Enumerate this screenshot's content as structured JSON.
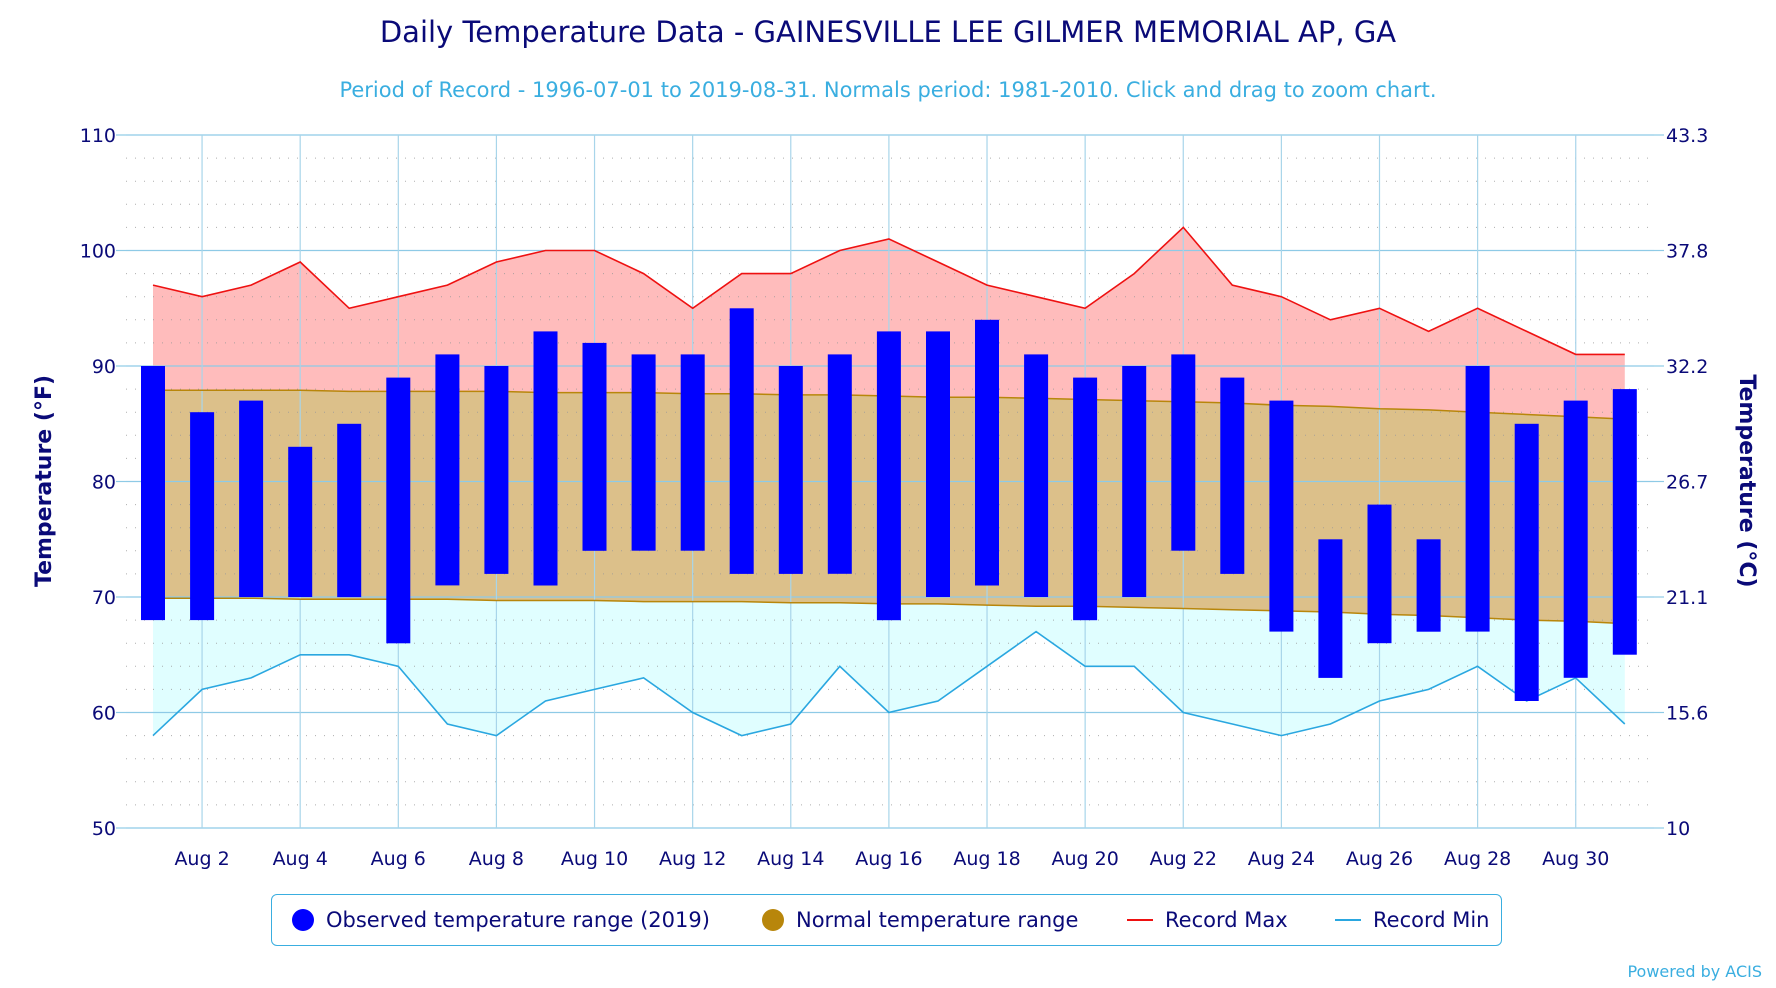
{
  "chart_data": {
    "type": "bar",
    "title": "Daily Temperature Data - GAINESVILLE LEE GILMER MEMORIAL AP, GA",
    "subtitle": "Period of Record - 1996-07-01 to 2019-08-31. Normals period: 1981-2010. Click and drag to zoom chart.",
    "ylabel_left": "Temperature (°F)",
    "ylabel_right": "Temperature (°C)",
    "ylim": [
      50,
      110
    ],
    "y_ticks": [
      50,
      60,
      70,
      80,
      90,
      100,
      110
    ],
    "y_ticks_right": [
      "10",
      "15.6",
      "21.1",
      "26.7",
      "32.2",
      "37.8",
      "43.3"
    ],
    "days": [
      1,
      2,
      3,
      4,
      5,
      6,
      7,
      8,
      9,
      10,
      11,
      12,
      13,
      14,
      15,
      16,
      17,
      18,
      19,
      20,
      21,
      22,
      23,
      24,
      25,
      26,
      27,
      28,
      29,
      30,
      31
    ],
    "x_tick_labels": [
      "Aug 2",
      "Aug 4",
      "Aug 6",
      "Aug 8",
      "Aug 10",
      "Aug 12",
      "Aug 14",
      "Aug 16",
      "Aug 18",
      "Aug 20",
      "Aug 22",
      "Aug 24",
      "Aug 26",
      "Aug 28",
      "Aug 30"
    ],
    "x_tick_days": [
      2,
      4,
      6,
      8,
      10,
      12,
      14,
      16,
      18,
      20,
      22,
      24,
      26,
      28,
      30
    ],
    "series": [
      {
        "name": "Observed temperature range (2019)",
        "color": "#0000ff",
        "low": [
          68,
          68,
          70,
          70,
          70,
          66,
          71,
          72,
          71,
          74,
          74,
          74,
          72,
          72,
          72,
          68,
          70,
          71,
          70,
          68,
          70,
          74,
          72,
          67,
          63,
          66,
          67,
          67,
          61,
          63,
          65
        ],
        "high": [
          90,
          86,
          87,
          83,
          85,
          89,
          91,
          90,
          93,
          92,
          91,
          91,
          95,
          90,
          91,
          93,
          93,
          94,
          91,
          89,
          90,
          91,
          89,
          87,
          75,
          78,
          75,
          90,
          85,
          87,
          88
        ]
      },
      {
        "name": "Normal temperature range",
        "color": "#b8860b",
        "low": [
          69.9,
          69.9,
          69.9,
          69.8,
          69.8,
          69.8,
          69.8,
          69.7,
          69.7,
          69.7,
          69.6,
          69.6,
          69.6,
          69.5,
          69.5,
          69.4,
          69.4,
          69.3,
          69.2,
          69.2,
          69.1,
          69.0,
          68.9,
          68.8,
          68.7,
          68.5,
          68.4,
          68.2,
          68.0,
          67.9,
          67.7
        ],
        "high": [
          87.9,
          87.9,
          87.9,
          87.9,
          87.8,
          87.8,
          87.8,
          87.8,
          87.7,
          87.7,
          87.7,
          87.6,
          87.6,
          87.5,
          87.5,
          87.4,
          87.3,
          87.3,
          87.2,
          87.1,
          87.0,
          86.9,
          86.8,
          86.6,
          86.5,
          86.3,
          86.2,
          86.0,
          85.8,
          85.6,
          85.4
        ]
      },
      {
        "name": "Record Max",
        "color": "#ee1111",
        "values": [
          97,
          96,
          97,
          99,
          95,
          96,
          97,
          99,
          100,
          100,
          98,
          95,
          98,
          98,
          100,
          101,
          99,
          97,
          96,
          95,
          98,
          102,
          97,
          96,
          94,
          95,
          93,
          95,
          93,
          91,
          91
        ]
      },
      {
        "name": "Record Min",
        "color": "#2aa7e0",
        "values": [
          58,
          62,
          63,
          65,
          65,
          64,
          59,
          58,
          61,
          62,
          63,
          60,
          58,
          59,
          64,
          60,
          61,
          64,
          67,
          64,
          64,
          60,
          59,
          58,
          59,
          61,
          62,
          64,
          61,
          63,
          59
        ]
      }
    ],
    "legend": [
      {
        "label": "Observed temperature range (2019)",
        "color": "#0000ff",
        "marker": "dot"
      },
      {
        "label": "Normal temperature range",
        "color": "#b8860b",
        "marker": "dot"
      },
      {
        "label": "Record Max",
        "color": "#ee1111",
        "marker": "line"
      },
      {
        "label": "Record Min",
        "color": "#2aa7e0",
        "marker": "line"
      }
    ],
    "legend_position": "bottom-center",
    "grid": true,
    "credits": "Powered by ACIS"
  }
}
